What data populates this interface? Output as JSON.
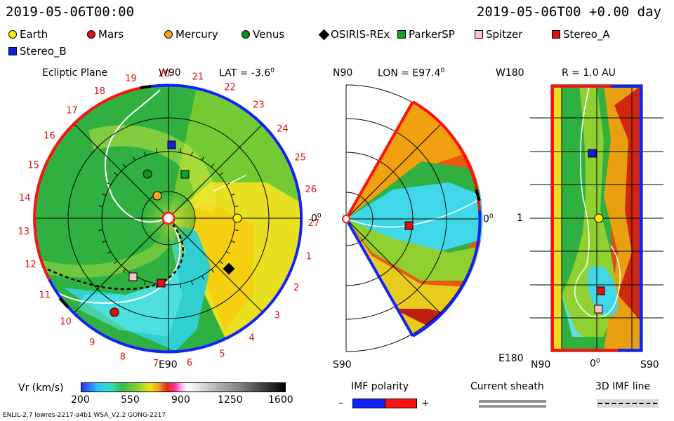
{
  "header": {
    "date_left": "2019-05-06T00:00",
    "date_right": "2019-05-06T00 +0.00 day"
  },
  "legend": [
    {
      "label": "Earth",
      "color": "#ffee00",
      "shape": "circle"
    },
    {
      "label": "Mars",
      "color": "#e01010",
      "shape": "circle"
    },
    {
      "label": "Mercury",
      "color": "#ffa020",
      "shape": "circle"
    },
    {
      "label": "Venus",
      "color": "#109020",
      "shape": "circle"
    },
    {
      "label": "OSIRIS-REx",
      "color": "#000000",
      "shape": "diamond"
    },
    {
      "label": "ParkerSP",
      "color": "#10a030",
      "shape": "square"
    },
    {
      "label": "Spitzer",
      "color": "#ffc0cc",
      "shape": "square"
    },
    {
      "label": "Stereo_A",
      "color": "#e01010",
      "shape": "square"
    },
    {
      "label": "Stereo_B",
      "color": "#1020e0",
      "shape": "square"
    }
  ],
  "ecliptic": {
    "title": "Ecliptic Plane",
    "lat_label": "LAT = -3.6",
    "deg": "0",
    "top_label": "W90",
    "bottom_label": "E90",
    "right_label": "0",
    "longitude_ticks": [
      "19",
      "20",
      "21",
      "22",
      "23",
      "24",
      "25",
      "26",
      "27",
      "1",
      "2",
      "3",
      "4",
      "5",
      "6",
      "7",
      "8",
      "9",
      "10",
      "11",
      "12",
      "13",
      "14",
      "15",
      "16",
      "17",
      "18"
    ]
  },
  "meridional": {
    "lon_label": "LON = E97.4",
    "deg": "0",
    "top_label": "N90",
    "bottom_label": "S90",
    "right_label": "0"
  },
  "radial": {
    "r_label": "R = 1.0 AU",
    "top_left": "W180",
    "mid_left": "1",
    "bottom_left": "E180",
    "bottom_n": "N90",
    "bottom_mid": "0",
    "bottom_s": "S90"
  },
  "colorbar": {
    "title": "Vr (km/s)",
    "ticks": [
      "200",
      "550",
      "900",
      "1250",
      "1600"
    ]
  },
  "imf": {
    "title": "IMF polarity",
    "minus": "–",
    "plus": "+"
  },
  "sheath": {
    "title": "Current sheath"
  },
  "imf3d": {
    "title": "3D IMF line"
  },
  "footer": {
    "left": "ENLIL-2.7 lowres-2217-a4b1 WSA_V2.2 GONG-2217"
  }
}
